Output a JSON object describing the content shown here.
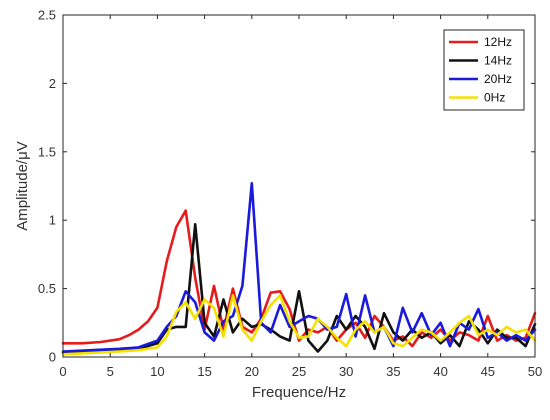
{
  "chart_data": {
    "type": "line",
    "xlabel": "Frequence/Hz",
    "ylabel": "Amplitude/μV",
    "xlim": [
      0,
      50
    ],
    "ylim": [
      0,
      2.5
    ],
    "xticks": [
      0,
      5,
      10,
      15,
      20,
      25,
      30,
      35,
      40,
      45,
      50
    ],
    "yticks": [
      0,
      0.5,
      1,
      1.5,
      2,
      2.5
    ],
    "xtick_labels": [
      "0",
      "5",
      "10",
      "15",
      "20",
      "25",
      "30",
      "35",
      "40",
      "45",
      "50"
    ],
    "ytick_labels": [
      "0",
      "0.5",
      "1",
      "1.5",
      "2",
      "2.5"
    ],
    "grid": false,
    "legend_position": "top-right",
    "series": [
      {
        "name": "12Hz",
        "color": "#e61b1b",
        "points": [
          [
            0,
            0.1
          ],
          [
            2,
            0.1
          ],
          [
            4,
            0.11
          ],
          [
            6,
            0.13
          ],
          [
            7,
            0.16
          ],
          [
            8,
            0.2
          ],
          [
            9,
            0.26
          ],
          [
            10,
            0.36
          ],
          [
            11,
            0.7
          ],
          [
            12,
            0.95
          ],
          [
            13,
            1.07
          ],
          [
            14,
            0.58
          ],
          [
            15,
            0.2
          ],
          [
            16,
            0.52
          ],
          [
            17,
            0.2
          ],
          [
            18,
            0.5
          ],
          [
            19,
            0.22
          ],
          [
            20,
            0.18
          ],
          [
            21,
            0.28
          ],
          [
            22,
            0.47
          ],
          [
            23,
            0.48
          ],
          [
            24,
            0.35
          ],
          [
            25,
            0.12
          ],
          [
            26,
            0.2
          ],
          [
            27,
            0.18
          ],
          [
            28,
            0.22
          ],
          [
            29,
            0.12
          ],
          [
            30,
            0.2
          ],
          [
            31,
            0.25
          ],
          [
            32,
            0.14
          ],
          [
            33,
            0.3
          ],
          [
            34,
            0.22
          ],
          [
            35,
            0.12
          ],
          [
            36,
            0.15
          ],
          [
            37,
            0.08
          ],
          [
            38,
            0.18
          ],
          [
            39,
            0.14
          ],
          [
            40,
            0.2
          ],
          [
            41,
            0.12
          ],
          [
            42,
            0.18
          ],
          [
            43,
            0.16
          ],
          [
            44,
            0.12
          ],
          [
            45,
            0.3
          ],
          [
            46,
            0.12
          ],
          [
            47,
            0.16
          ],
          [
            48,
            0.12
          ],
          [
            49,
            0.14
          ],
          [
            50,
            0.32
          ]
        ]
      },
      {
        "name": "14Hz",
        "color": "#111111",
        "points": [
          [
            0,
            0.03
          ],
          [
            3,
            0.04
          ],
          [
            6,
            0.05
          ],
          [
            8,
            0.06
          ],
          [
            10,
            0.1
          ],
          [
            11,
            0.2
          ],
          [
            12,
            0.22
          ],
          [
            13,
            0.22
          ],
          [
            14,
            0.97
          ],
          [
            15,
            0.25
          ],
          [
            16,
            0.15
          ],
          [
            17,
            0.42
          ],
          [
            18,
            0.18
          ],
          [
            19,
            0.28
          ],
          [
            20,
            0.22
          ],
          [
            21,
            0.24
          ],
          [
            22,
            0.2
          ],
          [
            23,
            0.15
          ],
          [
            24,
            0.12
          ],
          [
            25,
            0.48
          ],
          [
            26,
            0.12
          ],
          [
            27,
            0.04
          ],
          [
            28,
            0.12
          ],
          [
            29,
            0.3
          ],
          [
            30,
            0.2
          ],
          [
            31,
            0.3
          ],
          [
            32,
            0.22
          ],
          [
            33,
            0.06
          ],
          [
            34,
            0.32
          ],
          [
            35,
            0.18
          ],
          [
            36,
            0.12
          ],
          [
            37,
            0.2
          ],
          [
            38,
            0.14
          ],
          [
            39,
            0.18
          ],
          [
            40,
            0.1
          ],
          [
            41,
            0.16
          ],
          [
            42,
            0.08
          ],
          [
            43,
            0.26
          ],
          [
            44,
            0.2
          ],
          [
            45,
            0.1
          ],
          [
            46,
            0.2
          ],
          [
            47,
            0.14
          ],
          [
            48,
            0.14
          ],
          [
            49,
            0.08
          ],
          [
            50,
            0.24
          ]
        ]
      },
      {
        "name": "20Hz",
        "color": "#1a1adc",
        "points": [
          [
            0,
            0.04
          ],
          [
            3,
            0.05
          ],
          [
            6,
            0.06
          ],
          [
            8,
            0.07
          ],
          [
            10,
            0.12
          ],
          [
            11,
            0.22
          ],
          [
            12,
            0.3
          ],
          [
            13,
            0.48
          ],
          [
            14,
            0.4
          ],
          [
            15,
            0.18
          ],
          [
            16,
            0.12
          ],
          [
            17,
            0.26
          ],
          [
            18,
            0.3
          ],
          [
            19,
            0.52
          ],
          [
            20,
            1.27
          ],
          [
            21,
            0.25
          ],
          [
            22,
            0.18
          ],
          [
            23,
            0.38
          ],
          [
            24,
            0.22
          ],
          [
            25,
            0.26
          ],
          [
            26,
            0.3
          ],
          [
            27,
            0.28
          ],
          [
            28,
            0.2
          ],
          [
            29,
            0.22
          ],
          [
            30,
            0.46
          ],
          [
            31,
            0.15
          ],
          [
            32,
            0.45
          ],
          [
            33,
            0.18
          ],
          [
            34,
            0.22
          ],
          [
            35,
            0.08
          ],
          [
            36,
            0.36
          ],
          [
            37,
            0.18
          ],
          [
            38,
            0.32
          ],
          [
            39,
            0.16
          ],
          [
            40,
            0.25
          ],
          [
            41,
            0.08
          ],
          [
            42,
            0.25
          ],
          [
            43,
            0.2
          ],
          [
            44,
            0.35
          ],
          [
            45,
            0.14
          ],
          [
            46,
            0.18
          ],
          [
            47,
            0.12
          ],
          [
            48,
            0.16
          ],
          [
            49,
            0.12
          ],
          [
            50,
            0.2
          ]
        ]
      },
      {
        "name": "0Hz",
        "color": "#f5e100",
        "points": [
          [
            0,
            0.02
          ],
          [
            3,
            0.03
          ],
          [
            6,
            0.04
          ],
          [
            8,
            0.05
          ],
          [
            10,
            0.07
          ],
          [
            11,
            0.15
          ],
          [
            12,
            0.33
          ],
          [
            13,
            0.4
          ],
          [
            14,
            0.28
          ],
          [
            15,
            0.42
          ],
          [
            16,
            0.36
          ],
          [
            17,
            0.15
          ],
          [
            18,
            0.45
          ],
          [
            19,
            0.2
          ],
          [
            20,
            0.12
          ],
          [
            21,
            0.26
          ],
          [
            22,
            0.38
          ],
          [
            23,
            0.45
          ],
          [
            24,
            0.26
          ],
          [
            25,
            0.14
          ],
          [
            26,
            0.15
          ],
          [
            27,
            0.28
          ],
          [
            28,
            0.22
          ],
          [
            29,
            0.14
          ],
          [
            30,
            0.08
          ],
          [
            31,
            0.2
          ],
          [
            32,
            0.26
          ],
          [
            33,
            0.18
          ],
          [
            34,
            0.22
          ],
          [
            35,
            0.1
          ],
          [
            36,
            0.08
          ],
          [
            37,
            0.14
          ],
          [
            38,
            0.2
          ],
          [
            39,
            0.18
          ],
          [
            40,
            0.12
          ],
          [
            41,
            0.18
          ],
          [
            42,
            0.25
          ],
          [
            43,
            0.3
          ],
          [
            44,
            0.16
          ],
          [
            45,
            0.2
          ],
          [
            46,
            0.16
          ],
          [
            47,
            0.22
          ],
          [
            48,
            0.18
          ],
          [
            49,
            0.2
          ],
          [
            50,
            0.12
          ]
        ]
      }
    ]
  }
}
